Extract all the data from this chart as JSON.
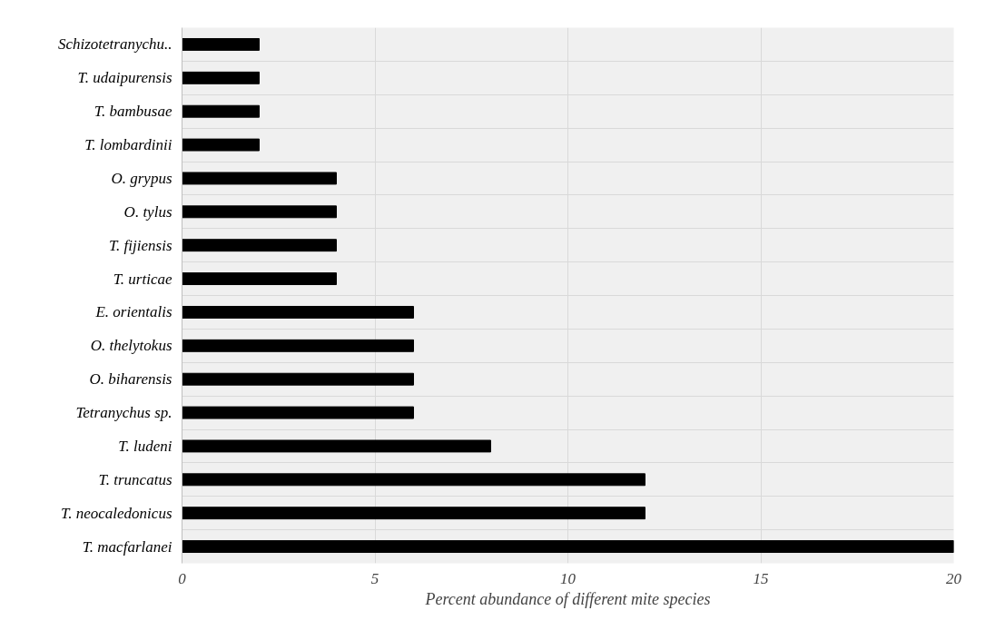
{
  "chart_data": {
    "type": "bar",
    "orientation": "horizontal",
    "xlabel": "Percent abundance of different mite species",
    "categories": [
      "Schizotetranychu..",
      "T. udaipurensis",
      "T. bambusae",
      "T. lombardinii",
      "O. grypus",
      "O. tylus",
      "T. fijiensis",
      "T. urticae",
      "E. orientalis",
      "O. thelytokus",
      "O. biharensis",
      "Tetranychus sp.",
      "T. ludeni",
      "T. truncatus",
      "T. neocaledonicus",
      "T. macfarlanei"
    ],
    "values": [
      2,
      2,
      2,
      2,
      4,
      4,
      4,
      4,
      6,
      6,
      6,
      6,
      8,
      12,
      12,
      20
    ],
    "color": "#000000",
    "xlim": [
      0,
      20
    ],
    "xticks": [
      0,
      5,
      10,
      15,
      20
    ],
    "grid": true
  }
}
